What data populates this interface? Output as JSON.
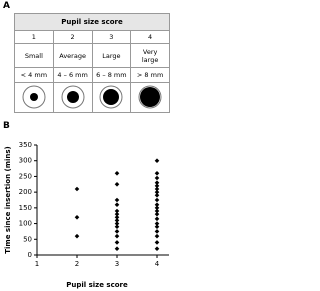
{
  "panels": [
    "A",
    "B"
  ],
  "table": {
    "header": "Pupil size score",
    "scores": [
      "1",
      "2",
      "3",
      "4"
    ],
    "descriptions": [
      "Small",
      "Average",
      "Large",
      "Very large"
    ],
    "sizes": [
      "< 4 mm",
      "4 – 6 mm",
      "6 – 8 mm",
      "> 8 mm"
    ]
  },
  "chart_data": {
    "type": "scatter",
    "x_label": "Pupil size score",
    "y_label": "Time since insertion (mins)",
    "x": [
      2,
      2,
      2,
      3,
      3,
      3,
      3,
      3,
      3,
      3,
      3,
      3,
      3,
      3,
      3,
      3,
      3,
      4,
      4,
      4,
      4,
      4,
      4,
      4,
      4,
      4,
      4,
      4,
      4,
      4,
      4,
      4,
      4,
      4,
      4,
      4,
      4
    ],
    "y": [
      210,
      120,
      60,
      260,
      225,
      175,
      160,
      140,
      130,
      120,
      110,
      100,
      90,
      75,
      60,
      40,
      20,
      300,
      260,
      245,
      230,
      220,
      210,
      200,
      190,
      175,
      160,
      150,
      140,
      130,
      115,
      100,
      90,
      75,
      60,
      40,
      20
    ],
    "color": "#000000",
    "xlim": [
      1,
      4.3
    ],
    "xticks": [
      1,
      2,
      3,
      4
    ],
    "ylim": [
      0,
      350
    ],
    "yticks": [
      0,
      50,
      100,
      150,
      200,
      250,
      300,
      350
    ]
  }
}
